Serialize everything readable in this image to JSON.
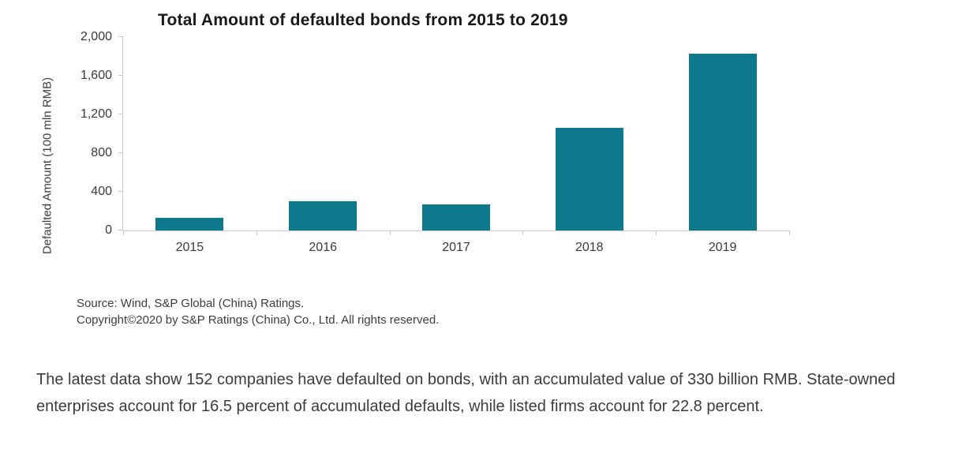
{
  "chart_data": {
    "type": "bar",
    "title": "Total Amount of defaulted bonds from 2015 to 2019",
    "categories": [
      "2015",
      "2016",
      "2017",
      "2018",
      "2019"
    ],
    "values": [
      130,
      300,
      270,
      1060,
      1830
    ],
    "xlabel": "",
    "ylabel": "Defaulted Amount (100 mln RMB)",
    "ylim": [
      0,
      2000
    ],
    "yticks": [
      0,
      400,
      800,
      1200,
      1600,
      2000
    ],
    "ytick_labels": [
      "0",
      "400",
      "800",
      "1,200",
      "1,600",
      "2,000"
    ],
    "bar_color": "#0E798C",
    "grid": false,
    "legend": false
  },
  "source": {
    "line1": "Source: Wind, S&P Global (China) Ratings.",
    "line2": "Copyright©2020 by S&P Ratings (China) Co., Ltd. All rights reserved."
  },
  "body": {
    "paragraph": "The latest data show 152 companies have defaulted on bonds, with an accumulated value of 330 billion RMB. State-owned enterprises account for 16.5 percent of accumulated defaults, while listed firms account for 22.8 percent."
  }
}
